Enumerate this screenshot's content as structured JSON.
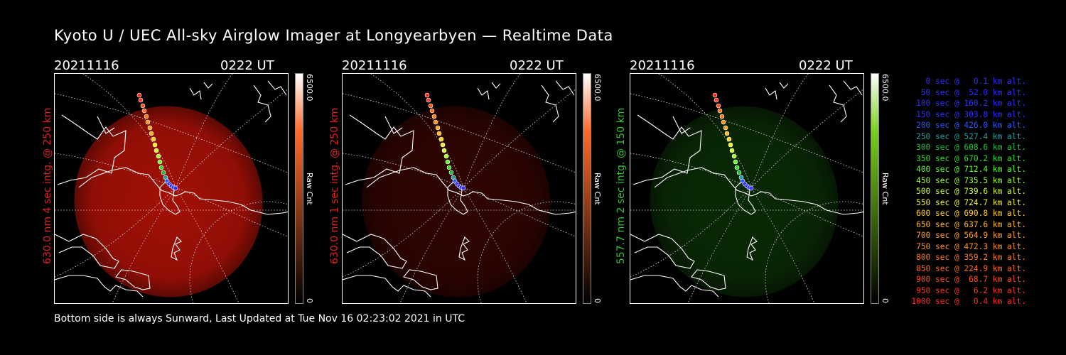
{
  "title": "Kyoto U / UEC All-sky Airglow Imager at Longyearbyen — Realtime Data",
  "footer": "Bottom side is always Sunward, Last Updated at Tue Nov 16 02:23:02 2021 in UTC",
  "panels": [
    {
      "date": "20211116",
      "time": "0222 UT",
      "ylabel": "630.0 nm 4 sec intg. @ 250 km",
      "label_color": "#e02020",
      "cbar_max": "6500.0",
      "cbar_unit": "Raw Cnt",
      "cbar_min": "0",
      "cbar_top": "#ff6a2a",
      "cbar_bot": "#000000",
      "glow": "#c81408",
      "glow_level": 0.85
    },
    {
      "date": "20211116",
      "time": "0222 UT",
      "ylabel": "630.0 nm 1 sec intg. @ 250 km",
      "label_color": "#e02020",
      "cbar_max": "6500.0",
      "cbar_unit": "Raw Cnt",
      "cbar_min": "0",
      "cbar_top": "#ff6a2a",
      "cbar_bot": "#000000",
      "glow": "#c81408",
      "glow_level": 0.25
    },
    {
      "date": "20211116",
      "time": "0222 UT",
      "ylabel": "557.7 nm 2 sec intg. @ 150 km",
      "label_color": "#30c030",
      "cbar_max": "6500.0",
      "cbar_unit": "Raw Cnt",
      "cbar_min": "0",
      "cbar_top": "#7ad020",
      "cbar_bot": "#000000",
      "glow": "#1c7a10",
      "glow_level": 0.35
    }
  ],
  "legend": [
    {
      "text": "0 sec @   0.1 km alt.",
      "color": "#3030ff"
    },
    {
      "text": "50 sec @  52.0 km alt.",
      "color": "#3030ff"
    },
    {
      "text": "100 sec @ 160.2 km alt.",
      "color": "#3030ff"
    },
    {
      "text": "150 sec @ 303.8 km alt.",
      "color": "#3030ff"
    },
    {
      "text": "200 sec @ 426.0 km alt.",
      "color": "#2a5aff"
    },
    {
      "text": "250 sec @ 527.4 km alt.",
      "color": "#20a0a0"
    },
    {
      "text": "300 sec @ 608.6 km alt.",
      "color": "#20c040"
    },
    {
      "text": "350 sec @ 670.2 km alt.",
      "color": "#30e030"
    },
    {
      "text": "400 sec @ 712.4 km alt.",
      "color": "#60ff30"
    },
    {
      "text": "450 sec @ 735.5 km alt.",
      "color": "#a0ff30"
    },
    {
      "text": "500 sec @ 739.6 km alt.",
      "color": "#d0ff30"
    },
    {
      "text": "550 sec @ 724.7 km alt.",
      "color": "#f0f030"
    },
    {
      "text": "600 sec @ 690.8 km alt.",
      "color": "#ffd020"
    },
    {
      "text": "650 sec @ 637.6 km alt.",
      "color": "#ffb820"
    },
    {
      "text": "700 sec @ 564.9 km alt.",
      "color": "#ffa020"
    },
    {
      "text": "750 sec @ 472.3 km alt.",
      "color": "#ff9020"
    },
    {
      "text": "800 sec @ 359.2 km alt.",
      "color": "#ff7a20"
    },
    {
      "text": "850 sec @ 224.9 km alt.",
      "color": "#ff6a20"
    },
    {
      "text": "900 sec @  68.7 km alt.",
      "color": "#ff5020"
    },
    {
      "text": "950 sec @   6.2 km alt.",
      "color": "#ff3a20"
    },
    {
      "text": "1000 sec @   0.4 km alt.",
      "color": "#ff2a20"
    }
  ]
}
